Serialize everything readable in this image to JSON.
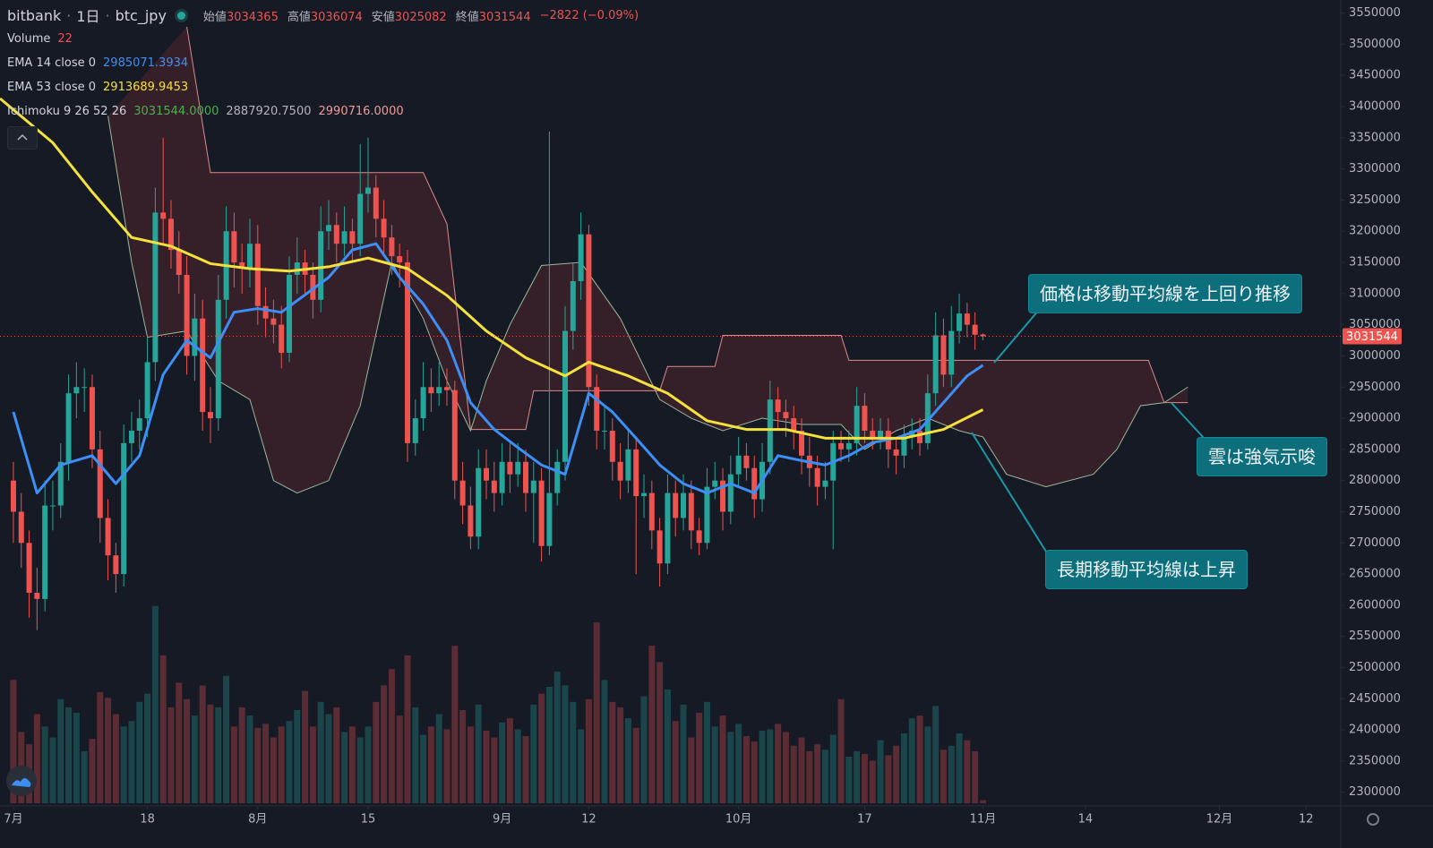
{
  "header": {
    "exchange": "bitbank",
    "interval": "1日",
    "symbol": "btc_jpy",
    "ohlc": [
      {
        "label": "始値",
        "value": 3034365
      },
      {
        "label": "高値",
        "value": 3036074
      },
      {
        "label": "安値",
        "value": 3025082
      },
      {
        "label": "終値",
        "value": 3031544
      }
    ],
    "change": "−2822 (−0.09%)"
  },
  "legend": {
    "volume": "Volume",
    "ema14": "EMA 14 close 0",
    "ema53": "EMA 53 close 0",
    "ichimoku": "Ichimoku 9 26 52 26",
    "ichimoku_values": [
      "3031544.0000",
      "2887920.7500",
      "2990716.0000"
    ]
  },
  "annotations": [
    "価格は移動平均線を上回り推移",
    "雲は強気示唆",
    "長期移動平均線は上昇"
  ],
  "chart_data": {
    "type": "candlestick",
    "xlim": [
      -1.7,
      168.4
    ],
    "ylim": [
      2278000,
      3571000
    ],
    "volume_ylim": [
      0,
      1700
    ],
    "xticks": [
      {
        "value": 0,
        "label": "7月"
      },
      {
        "value": 17,
        "label": "18"
      },
      {
        "value": 31,
        "label": "8月"
      },
      {
        "value": 45,
        "label": "15"
      },
      {
        "value": 62,
        "label": "9月"
      },
      {
        "value": 73,
        "label": "12"
      },
      {
        "value": 92,
        "label": "10月"
      },
      {
        "value": 108,
        "label": "17"
      },
      {
        "value": 123,
        "label": "11月"
      },
      {
        "value": 136,
        "label": "14"
      },
      {
        "value": 153,
        "label": "12月"
      },
      {
        "value": 164,
        "label": "12"
      }
    ],
    "yticks": [
      3550000,
      3500000,
      3450000,
      3400000,
      3350000,
      3300000,
      3250000,
      3200000,
      3150000,
      3100000,
      3050000,
      3000000,
      2950000,
      2900000,
      2850000,
      2800000,
      2750000,
      2700000,
      2650000,
      2600000,
      2550000,
      2500000,
      2450000,
      2400000,
      2350000,
      2300000
    ],
    "up_color": "#26a69a",
    "down_color": "#ef5350",
    "candles": [
      [
        2800000,
        2830000,
        2700000,
        2750000
      ],
      [
        2750000,
        2780000,
        2660000,
        2700000
      ],
      [
        2700000,
        2720000,
        2580000,
        2620000
      ],
      [
        2620000,
        2660000,
        2560000,
        2610000
      ],
      [
        2610000,
        2800000,
        2590000,
        2760000
      ],
      [
        2760000,
        2800000,
        2720000,
        2760000
      ],
      [
        2760000,
        2860000,
        2740000,
        2830000
      ],
      [
        2830000,
        2970000,
        2800000,
        2940000
      ],
      [
        2940000,
        2990000,
        2900000,
        2950000
      ],
      [
        2950000,
        2980000,
        2910000,
        2950000
      ],
      [
        2950000,
        2970000,
        2820000,
        2850000
      ],
      [
        2850000,
        2880000,
        2700000,
        2740000
      ],
      [
        2740000,
        2770000,
        2640000,
        2680000
      ],
      [
        2680000,
        2700000,
        2620000,
        2650000
      ],
      [
        2650000,
        2890000,
        2630000,
        2860000
      ],
      [
        2860000,
        2910000,
        2830000,
        2880000
      ],
      [
        2880000,
        2930000,
        2850000,
        2900000
      ],
      [
        2900000,
        3030000,
        2870000,
        2990000
      ],
      [
        2990000,
        3270000,
        2960000,
        3230000
      ],
      [
        3230000,
        3350000,
        3180000,
        3220000
      ],
      [
        3220000,
        3250000,
        3140000,
        3170000
      ],
      [
        3170000,
        3200000,
        3100000,
        3130000
      ],
      [
        3130000,
        3160000,
        2970000,
        3000000
      ],
      [
        3000000,
        3100000,
        2960000,
        3060000
      ],
      [
        3060000,
        3090000,
        2880000,
        2910000
      ],
      [
        2910000,
        2950000,
        2860000,
        2900000
      ],
      [
        2900000,
        3130000,
        2880000,
        3090000
      ],
      [
        3090000,
        3240000,
        3060000,
        3200000
      ],
      [
        3200000,
        3230000,
        3110000,
        3150000
      ],
      [
        3150000,
        3180000,
        3100000,
        3140000
      ],
      [
        3140000,
        3220000,
        3110000,
        3180000
      ],
      [
        3180000,
        3210000,
        3050000,
        3080000
      ],
      [
        3080000,
        3110000,
        3030000,
        3060000
      ],
      [
        3060000,
        3090000,
        3020000,
        3050000
      ],
      [
        3050000,
        3080000,
        2980000,
        3005000
      ],
      [
        3005000,
        3160000,
        2990000,
        3130000
      ],
      [
        3130000,
        3190000,
        3100000,
        3150000
      ],
      [
        3150000,
        3170000,
        3100000,
        3130000
      ],
      [
        3130000,
        3150000,
        3060000,
        3090000
      ],
      [
        3090000,
        3240000,
        3070000,
        3200000
      ],
      [
        3200000,
        3250000,
        3170000,
        3210000
      ],
      [
        3210000,
        3230000,
        3150000,
        3180000
      ],
      [
        3180000,
        3240000,
        3160000,
        3200000
      ],
      [
        3200000,
        3220000,
        3150000,
        3180000
      ],
      [
        3180000,
        3340000,
        3160000,
        3260000
      ],
      [
        3260000,
        3350000,
        3230000,
        3270000
      ],
      [
        3270000,
        3290000,
        3190000,
        3220000
      ],
      [
        3220000,
        3250000,
        3160000,
        3190000
      ],
      [
        3190000,
        3210000,
        3130000,
        3160000
      ],
      [
        3160000,
        3180000,
        3110000,
        3150000
      ],
      [
        3150000,
        3170000,
        2830000,
        2860000
      ],
      [
        2860000,
        2930000,
        2840000,
        2900000
      ],
      [
        2900000,
        2990000,
        2880000,
        2950000
      ],
      [
        2950000,
        2980000,
        2910000,
        2940000
      ],
      [
        2940000,
        2990000,
        2920000,
        2950000
      ],
      [
        2950000,
        2980000,
        2920000,
        2945000
      ],
      [
        2945000,
        2960000,
        2770000,
        2800000
      ],
      [
        2800000,
        2830000,
        2730000,
        2760000
      ],
      [
        2760000,
        2790000,
        2690000,
        2710000
      ],
      [
        2710000,
        2850000,
        2690000,
        2820000
      ],
      [
        2820000,
        2850000,
        2770000,
        2800000
      ],
      [
        2800000,
        2830000,
        2750000,
        2780000
      ],
      [
        2780000,
        2860000,
        2760000,
        2830000
      ],
      [
        2830000,
        2860000,
        2780000,
        2810000
      ],
      [
        2810000,
        2860000,
        2790000,
        2830000
      ],
      [
        2830000,
        2850000,
        2750000,
        2780000
      ],
      [
        2780000,
        2830000,
        2700000,
        2800000
      ],
      [
        2800000,
        2820000,
        2670000,
        2695000
      ],
      [
        2695000,
        3360000,
        2680000,
        2780000
      ],
      [
        2780000,
        2850000,
        2760000,
        2830000
      ],
      [
        2830000,
        3080000,
        2800000,
        3040000
      ],
      [
        3040000,
        3150000,
        3010000,
        3120000
      ],
      [
        3120000,
        3230000,
        3090000,
        3195000
      ],
      [
        3195000,
        3210000,
        2920000,
        2950000
      ],
      [
        2950000,
        2970000,
        2850000,
        2880000
      ],
      [
        2880000,
        2920000,
        2850000,
        2880000
      ],
      [
        2880000,
        2900000,
        2800000,
        2830000
      ],
      [
        2830000,
        2860000,
        2770000,
        2800000
      ],
      [
        2800000,
        2880000,
        2780000,
        2850000
      ],
      [
        2850000,
        2870000,
        2650000,
        2775000
      ],
      [
        2775000,
        2810000,
        2740000,
        2780000
      ],
      [
        2780000,
        2800000,
        2690000,
        2720000
      ],
      [
        2720000,
        2740000,
        2630000,
        2667000
      ],
      [
        2667000,
        2810000,
        2650000,
        2780000
      ],
      [
        2780000,
        2800000,
        2710000,
        2740000
      ],
      [
        2740000,
        2810000,
        2720000,
        2780000
      ],
      [
        2780000,
        2800000,
        2690000,
        2720000
      ],
      [
        2720000,
        2740000,
        2680000,
        2700000
      ],
      [
        2700000,
        2820000,
        2690000,
        2790000
      ],
      [
        2790000,
        2830000,
        2770000,
        2800000
      ],
      [
        2800000,
        2820000,
        2720000,
        2750000
      ],
      [
        2750000,
        2840000,
        2730000,
        2810000
      ],
      [
        2810000,
        2870000,
        2790000,
        2840000
      ],
      [
        2840000,
        2860000,
        2800000,
        2820000
      ],
      [
        2820000,
        2840000,
        2740000,
        2770000
      ],
      [
        2770000,
        2860000,
        2750000,
        2830000
      ],
      [
        2830000,
        2960000,
        2810000,
        2930000
      ],
      [
        2930000,
        2950000,
        2880000,
        2910000
      ],
      [
        2910000,
        2930000,
        2870000,
        2900000
      ],
      [
        2900000,
        2920000,
        2850000,
        2880000
      ],
      [
        2880000,
        2900000,
        2810000,
        2840000
      ],
      [
        2840000,
        2870000,
        2790000,
        2820000
      ],
      [
        2820000,
        2840000,
        2760000,
        2790000
      ],
      [
        2790000,
        2830000,
        2770000,
        2800000
      ],
      [
        2800000,
        2880000,
        2690000,
        2860000
      ],
      [
        2860000,
        2880000,
        2830000,
        2850000
      ],
      [
        2850000,
        2880000,
        2830000,
        2860000
      ],
      [
        2860000,
        2950000,
        2840000,
        2920000
      ],
      [
        2920000,
        2940000,
        2860000,
        2880000
      ],
      [
        2880000,
        2900000,
        2850000,
        2870000
      ],
      [
        2870000,
        2900000,
        2850000,
        2880000
      ],
      [
        2880000,
        2900000,
        2820000,
        2850000
      ],
      [
        2850000,
        2870000,
        2810000,
        2840000
      ],
      [
        2840000,
        2890000,
        2820000,
        2870000
      ],
      [
        2870000,
        2900000,
        2850000,
        2880000
      ],
      [
        2880000,
        2900000,
        2840000,
        2860000
      ],
      [
        2860000,
        2970000,
        2850000,
        2940000
      ],
      [
        2940000,
        3070000,
        2920000,
        3033000
      ],
      [
        3033000,
        3060000,
        2950000,
        2970000
      ],
      [
        2970000,
        3080000,
        2950000,
        3040000
      ],
      [
        3040000,
        3100000,
        3020000,
        3068000
      ],
      [
        3068000,
        3085000,
        3030000,
        3050000
      ],
      [
        3050000,
        3070000,
        3010000,
        3034000
      ],
      [
        3034365,
        3036074,
        3025082,
        3031544
      ]
    ],
    "volume": [
      900,
      520,
      430,
      650,
      560,
      480,
      760,
      700,
      660,
      380,
      470,
      810,
      770,
      650,
      560,
      600,
      740,
      800,
      1440,
      1080,
      700,
      880,
      760,
      640,
      860,
      720,
      700,
      930,
      560,
      700,
      640,
      550,
      580,
      480,
      560,
      600,
      680,
      820,
      560,
      740,
      650,
      700,
      520,
      560,
      480,
      560,
      740,
      860,
      980,
      640,
      1080,
      700,
      500,
      560,
      650,
      540,
      1150,
      680,
      560,
      720,
      530,
      480,
      590,
      620,
      540,
      490,
      720,
      800,
      850,
      960,
      860,
      740,
      540,
      760,
      1320,
      900,
      740,
      700,
      620,
      550,
      780,
      1150,
      1030,
      830,
      600,
      720,
      480,
      660,
      740,
      560,
      640,
      520,
      580,
      490,
      450,
      530,
      540,
      580,
      520,
      420,
      480,
      380,
      430,
      390,
      500,
      760,
      340,
      380,
      360,
      310,
      460,
      350,
      420,
      510,
      620,
      640,
      560,
      710,
      390,
      420,
      510,
      460,
      380,
      22
    ],
    "series": [
      {
        "name": "EMA 14",
        "color": "#3d8ff5",
        "x": [
          0,
          3,
          6,
          10,
          13,
          16,
          19,
          22,
          25,
          28,
          31,
          34,
          37,
          40,
          43,
          46,
          49,
          52,
          55,
          58,
          61,
          64,
          67,
          70,
          73,
          76,
          79,
          82,
          85,
          88,
          91,
          94,
          97,
          100,
          103,
          106,
          109,
          112,
          115,
          118,
          121,
          123
        ],
        "values": [
          2910000,
          2780000,
          2825000,
          2840000,
          2795000,
          2840000,
          2970000,
          3025000,
          2997000,
          3070000,
          3076000,
          3070000,
          3098000,
          3126000,
          3170000,
          3180000,
          3126000,
          3083000,
          3025000,
          2925000,
          2882000,
          2853000,
          2825000,
          2810000,
          2940000,
          2910000,
          2868000,
          2825000,
          2795000,
          2780000,
          2795000,
          2780000,
          2840000,
          2832000,
          2825000,
          2840000,
          2861000,
          2868000,
          2882000,
          2925000,
          2968000,
          2985071.3934
        ]
      },
      {
        "name": "EMA 53",
        "color": "#f4e13c",
        "x": [
          -1.7,
          5,
          10,
          15,
          20,
          25,
          30,
          35,
          40,
          45,
          50,
          55,
          60,
          65,
          70,
          73,
          78,
          83,
          88,
          93,
          98,
          103,
          108,
          113,
          118,
          123
        ],
        "values": [
          3413000,
          3342000,
          3263000,
          3190000,
          3176000,
          3148000,
          3140000,
          3136000,
          3143000,
          3157000,
          3140000,
          3097000,
          3040000,
          2997000,
          2968000,
          2990000,
          2968000,
          2940000,
          2896000,
          2882000,
          2882000,
          2868000,
          2868000,
          2868000,
          2882000,
          2913689.9453
        ]
      }
    ],
    "cloud": {
      "color": "rgba(120,45,50,0.32)",
      "span_a": {
        "color": "#9bb89b",
        "x": [
          12,
          15,
          17,
          22,
          26,
          30,
          33,
          36,
          40,
          44,
          48,
          52,
          55,
          58,
          60,
          63,
          67,
          72,
          77,
          82,
          86,
          90,
          95,
          100,
          105,
          108,
          112,
          116,
          120,
          123,
          126,
          131,
          137,
          140,
          143,
          146,
          149
        ],
        "values": [
          3385000,
          3150000,
          3030000,
          3040000,
          2960000,
          2930000,
          2800000,
          2780000,
          2800000,
          2920000,
          3150000,
          3060000,
          2960000,
          2880000,
          2960000,
          3050000,
          3145000,
          3150000,
          3060000,
          2930000,
          2900000,
          2880000,
          2900000,
          2890000,
          2890000,
          2850000,
          2880000,
          2900000,
          2880000,
          2870000,
          2810000,
          2790000,
          2810000,
          2850000,
          2920000,
          2925000,
          2950000
        ]
      },
      "span_b": {
        "color": "#d98c8c",
        "x": [
          22,
          25,
          52,
          55,
          58,
          65,
          66,
          82,
          83,
          89,
          90,
          105,
          106,
          144,
          146,
          149
        ],
        "values": [
          3528000,
          3294000,
          3294000,
          3212000,
          2882000,
          2882000,
          2944000,
          2944000,
          2983000,
          2983000,
          3033000,
          3033000,
          2993000,
          2993000,
          2925000,
          2925000
        ]
      }
    }
  }
}
